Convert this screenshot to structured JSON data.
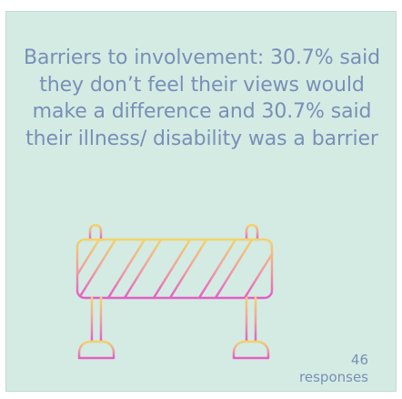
{
  "headline": "Barriers to involvement: 30.7% said they don’t feel their views would make a difference and 30.7% said their illness/ disability was a barrier",
  "response_count": "46",
  "response_label": "responses",
  "colors": {
    "background": "#d3ebe3",
    "text": "#7a8fb6",
    "gradient_top": "#f4d26a",
    "gradient_bottom": "#e45ec6"
  },
  "icon": "road-barrier-icon"
}
